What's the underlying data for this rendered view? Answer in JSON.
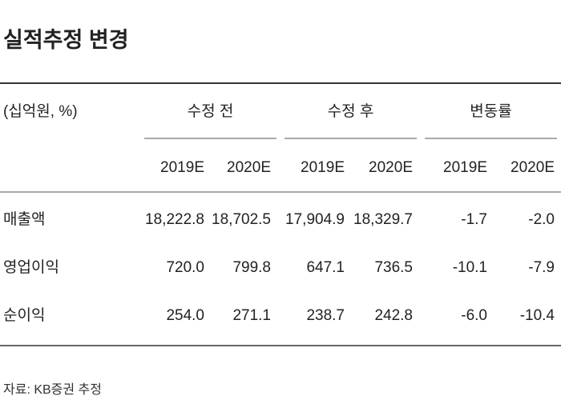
{
  "title": "실적추정 변경",
  "table": {
    "unit": "(십억원, %)",
    "groups": [
      "수정 전",
      "수정 후",
      "변동률"
    ],
    "years": [
      "2019E",
      "2020E",
      "2019E",
      "2020E",
      "2019E",
      "2020E"
    ],
    "rows": [
      [
        "매출액",
        "18,222.8",
        "18,702.5",
        "17,904.9",
        "18,329.7",
        "-1.7",
        "-2.0"
      ],
      [
        "영업이익",
        "720.0",
        "799.8",
        "647.1",
        "736.5",
        "-10.1",
        "-7.9"
      ],
      [
        "순이익",
        "254.0",
        "271.1",
        "238.7",
        "242.8",
        "-6.0",
        "-10.4"
      ]
    ]
  },
  "source": "자료: KB증권 추정"
}
